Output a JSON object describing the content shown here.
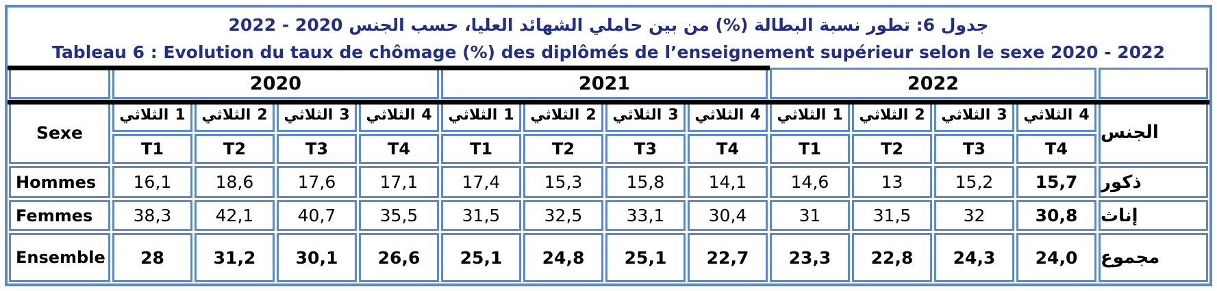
{
  "titles": {
    "ar": "جدول 6: تطور نسبة البطالة (%) من بين حاملي الشهائد العليا، حسب الجنس 2020 - 2022",
    "fr": "Tableau 6 : Evolution du taux de chômage (%) des diplômés de l’enseignement supérieur selon le sexe 2020 - 2022"
  },
  "colors": {
    "cell_border_blue": "#6089c4",
    "title_navy": "#232e86",
    "heavy_rule_black": "#000000"
  },
  "header": {
    "years": [
      "2020",
      "2021",
      "2022"
    ],
    "sexe_label": "Sexe",
    "jins_label": "الجنس",
    "quarter_word": "الثلاثي",
    "quarter_numbers": [
      "1",
      "2",
      "3",
      "4"
    ],
    "t_labels": [
      "T1",
      "T2",
      "T3",
      "T4"
    ]
  },
  "rows": [
    {
      "fr": "Hommes",
      "ar": "ذكور",
      "values": [
        "16,1",
        "18,6",
        "17,6",
        "17,1",
        "17,4",
        "15,3",
        "15,8",
        "14,1",
        "14,6",
        "13",
        "15,2",
        "15,7"
      ]
    },
    {
      "fr": "Femmes",
      "ar": "إناث",
      "values": [
        "38,3",
        "42,1",
        "40,7",
        "35,5",
        "31,5",
        "32,5",
        "33,1",
        "30,4",
        "31",
        "31,5",
        "32",
        "30,8"
      ]
    },
    {
      "fr": "Ensemble",
      "ar": "مجموع",
      "values": [
        "28",
        "31,2",
        "30,1",
        "26,6",
        "25,1",
        "24,8",
        "25,1",
        "22,7",
        "23,3",
        "22,8",
        "24,3",
        "24,0"
      ]
    }
  ]
}
